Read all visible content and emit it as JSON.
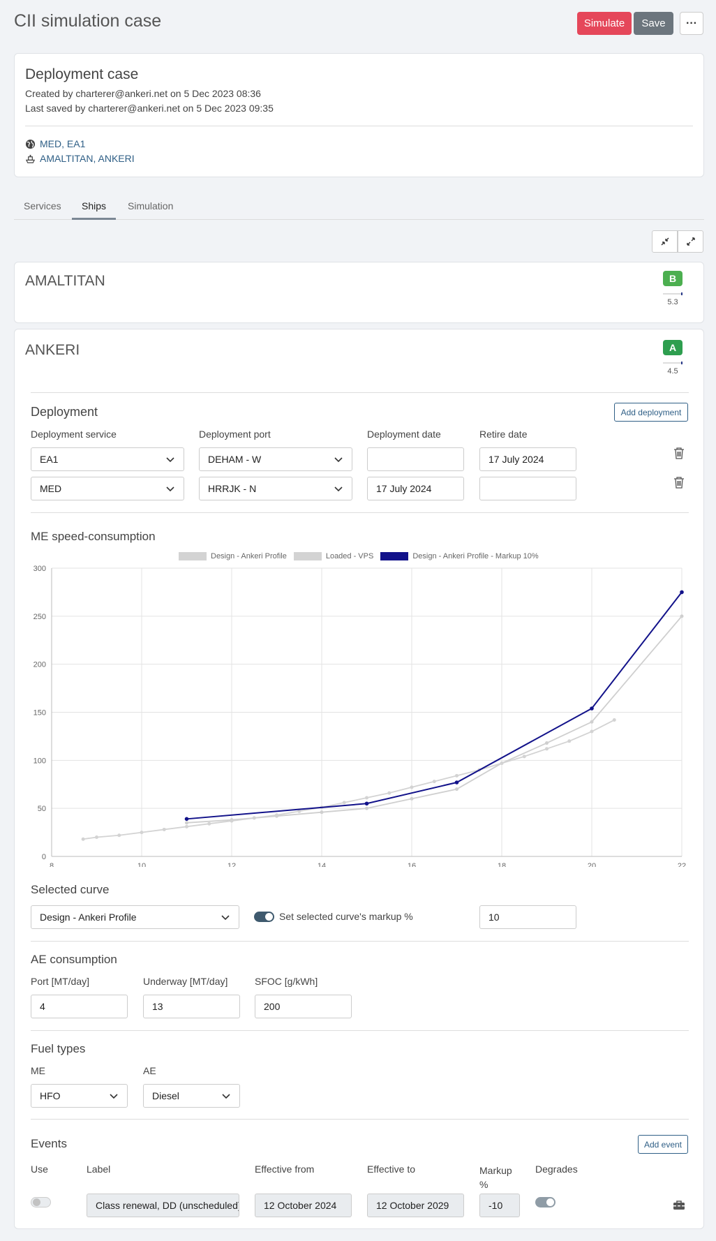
{
  "header": {
    "title": "CII simulation case",
    "simulate_label": "Simulate",
    "save_label": "Save",
    "more_label": "···"
  },
  "case": {
    "title": "Deployment case",
    "created": "Created by charterer@ankeri.net on 5 Dec 2023 08:36",
    "saved": "Last saved by charterer@ankeri.net on 5 Dec 2023 09:35",
    "services_link": "MED, EA1",
    "ships_link": "AMALTITAN, ANKERI"
  },
  "tabs": [
    {
      "label": "Services"
    },
    {
      "label": "Ships"
    },
    {
      "label": "Simulation"
    }
  ],
  "active_tab": "Ships",
  "ships": [
    {
      "name": "AMALTITAN",
      "rating": "B",
      "rating_color": "#4caf50",
      "value": "5.3"
    },
    {
      "name": "ANKERI",
      "rating": "A",
      "rating_color": "#2e9e4f",
      "value": "4.5"
    }
  ],
  "deployment": {
    "title": "Deployment",
    "add_label": "Add deployment",
    "col_service": "Deployment service",
    "col_port": "Deployment port",
    "col_date": "Deployment date",
    "col_retire": "Retire date",
    "rows": [
      {
        "service": "EA1",
        "port": "DEHAM - W",
        "date": "",
        "retire": "17 July 2024"
      },
      {
        "service": "MED",
        "port": "HRRJK - N",
        "date": "17 July 2024",
        "retire": ""
      }
    ]
  },
  "chart_section_title": "ME speed-consumption",
  "chart_data": {
    "type": "line",
    "xlim": [
      8,
      22
    ],
    "ylim": [
      0,
      300
    ],
    "x_ticks": [
      "8",
      "10",
      "12",
      "14",
      "16",
      "18",
      "20",
      "22"
    ],
    "y_ticks": [
      "0",
      "50",
      "100",
      "150",
      "200",
      "250",
      "300"
    ],
    "grid": true,
    "legend_position": "top",
    "series": [
      {
        "name": "Design - Ankeri Profile",
        "color": "#cfcfcf",
        "x": [
          11,
          12,
          13,
          14,
          15,
          16,
          17,
          18,
          19,
          20,
          22
        ],
        "y": [
          35,
          38,
          42,
          46,
          50,
          60,
          70,
          97,
          118,
          140,
          250
        ]
      },
      {
        "name": "Loaded - VPS",
        "color": "#d3d3d3",
        "x": [
          8.7,
          9,
          9.5,
          10,
          10.5,
          11,
          11.5,
          12,
          12.5,
          13,
          13.5,
          14,
          14.5,
          15,
          15.5,
          16,
          16.5,
          17,
          17.5,
          18,
          18.5,
          19,
          19.5,
          20,
          20.5
        ],
        "y": [
          18,
          20,
          22,
          25,
          28,
          31,
          34,
          37,
          40,
          43,
          47,
          51,
          56,
          61,
          66,
          72,
          78,
          84,
          90,
          97,
          104,
          112,
          120,
          130,
          142
        ]
      },
      {
        "name": "Design - Ankeri Profile - Markup 10%",
        "color": "#12128a",
        "x": [
          11,
          15,
          17,
          20,
          22
        ],
        "y": [
          39,
          55,
          77,
          154,
          275
        ]
      }
    ]
  },
  "selected_curve": {
    "title": "Selected curve",
    "value": "Design - Ankeri Profile",
    "toggle_label": "Set selected curve's markup %",
    "markup": "10"
  },
  "ae": {
    "title": "AE consumption",
    "port_label": "Port [MT/day]",
    "port": "4",
    "underway_label": "Underway [MT/day]",
    "underway": "13",
    "sfoc_label": "SFOC [g/kWh]",
    "sfoc": "200"
  },
  "fuel": {
    "title": "Fuel types",
    "me_label": "ME",
    "me": "HFO",
    "ae_label": "AE",
    "ae": "Diesel"
  },
  "events": {
    "title": "Events",
    "add_label": "Add event",
    "col_use": "Use",
    "col_label": "Label",
    "col_from": "Effective from",
    "col_to": "Effective to",
    "col_markup": "Markup %",
    "col_degrades": "Degrades",
    "row": {
      "label": "Class renewal, DD (unscheduled)",
      "from": "12 October 2024",
      "to": "12 October 2029",
      "markup": "-10"
    }
  },
  "icons": {
    "globe": "globe-icon",
    "ship": "ship-icon",
    "collapse": "collapse-icon",
    "expand": "expand-icon",
    "trash": "trash-icon",
    "chevron": "chevron-down-icon",
    "toolbox": "toolbox-icon"
  }
}
